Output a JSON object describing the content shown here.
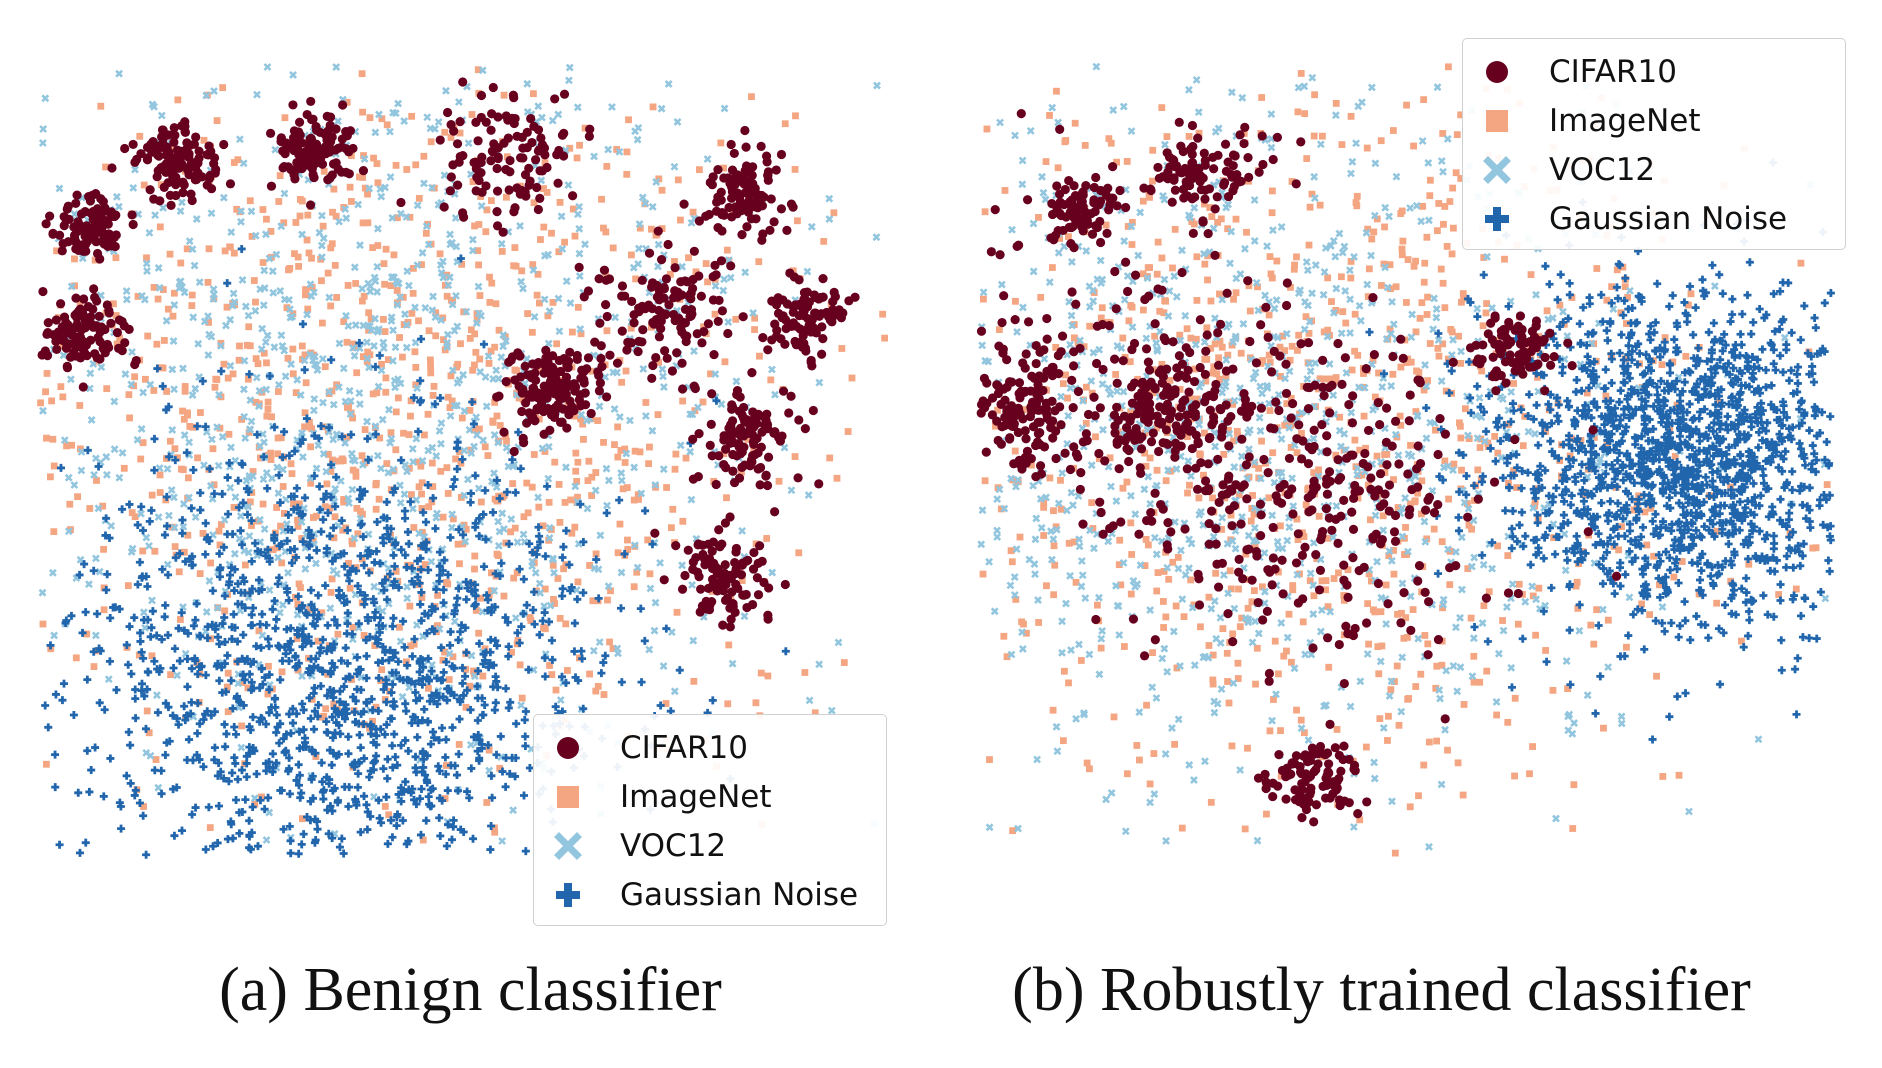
{
  "legend": {
    "entries": [
      {
        "label": "CIFAR10",
        "color": "#67001f",
        "marker": "circle"
      },
      {
        "label": "ImageNet",
        "color": "#f4a582",
        "marker": "square"
      },
      {
        "label": "VOC12",
        "color": "#92c5de",
        "marker": "x"
      },
      {
        "label": "Gaussian Noise",
        "color": "#2166ac",
        "marker": "plus"
      }
    ]
  },
  "chart_data": [
    {
      "type": "scatter",
      "caption": "(a) Benign classifier",
      "legend_position": "bottom-right",
      "grid": false,
      "axes_visible": false,
      "series": [
        {
          "name": "CIFAR10",
          "clusters": [
            {
              "x": 0.16,
              "y": 0.12,
              "spread": 0.025,
              "count": 120
            },
            {
              "x": 0.32,
              "y": 0.11,
              "spread": 0.025,
              "count": 110
            },
            {
              "x": 0.54,
              "y": 0.12,
              "spread": 0.04,
              "count": 110
            },
            {
              "x": 0.83,
              "y": 0.16,
              "spread": 0.025,
              "count": 110
            },
            {
              "x": 0.06,
              "y": 0.21,
              "spread": 0.02,
              "count": 100
            },
            {
              "x": 0.05,
              "y": 0.34,
              "spread": 0.025,
              "count": 110
            },
            {
              "x": 0.74,
              "y": 0.31,
              "spread": 0.04,
              "count": 120
            },
            {
              "x": 0.9,
              "y": 0.32,
              "spread": 0.025,
              "count": 100
            },
            {
              "x": 0.6,
              "y": 0.41,
              "spread": 0.03,
              "count": 140
            },
            {
              "x": 0.83,
              "y": 0.47,
              "spread": 0.03,
              "count": 110
            },
            {
              "x": 0.8,
              "y": 0.65,
              "spread": 0.03,
              "count": 100
            }
          ]
        },
        {
          "name": "ImageNet",
          "clusters": [
            {
              "x": 0.42,
              "y": 0.45,
              "spread": 0.25,
              "count": 1100
            }
          ]
        },
        {
          "name": "VOC12",
          "clusters": [
            {
              "x": 0.4,
              "y": 0.42,
              "spread": 0.25,
              "count": 1100
            }
          ]
        },
        {
          "name": "Gaussian Noise",
          "clusters": [
            {
              "x": 0.35,
              "y": 0.77,
              "spread": 0.16,
              "count": 1400
            }
          ]
        }
      ]
    },
    {
      "type": "scatter",
      "caption": "(b) Robustly trained classifier",
      "legend_position": "top-right",
      "grid": false,
      "axes_visible": false,
      "series": [
        {
          "name": "CIFAR10",
          "clusters": [
            {
              "x": 0.12,
              "y": 0.18,
              "spread": 0.02,
              "count": 80
            },
            {
              "x": 0.26,
              "y": 0.14,
              "spread": 0.03,
              "count": 90
            },
            {
              "x": 0.63,
              "y": 0.36,
              "spread": 0.025,
              "count": 90
            },
            {
              "x": 0.05,
              "y": 0.44,
              "spread": 0.04,
              "count": 140
            },
            {
              "x": 0.22,
              "y": 0.44,
              "spread": 0.04,
              "count": 130
            },
            {
              "x": 0.4,
              "y": 0.55,
              "spread": 0.1,
              "count": 260
            },
            {
              "x": 0.39,
              "y": 0.9,
              "spread": 0.025,
              "count": 90
            },
            {
              "x": 0.2,
              "y": 0.4,
              "spread": 0.15,
              "count": 160
            }
          ]
        },
        {
          "name": "ImageNet",
          "clusters": [
            {
              "x": 0.38,
              "y": 0.45,
              "spread": 0.25,
              "count": 1000
            }
          ]
        },
        {
          "name": "VOC12",
          "clusters": [
            {
              "x": 0.33,
              "y": 0.47,
              "spread": 0.25,
              "count": 1000
            }
          ]
        },
        {
          "name": "Gaussian Noise",
          "clusters": [
            {
              "x": 0.82,
              "y": 0.5,
              "spread": 0.11,
              "count": 1600
            }
          ]
        }
      ]
    }
  ]
}
